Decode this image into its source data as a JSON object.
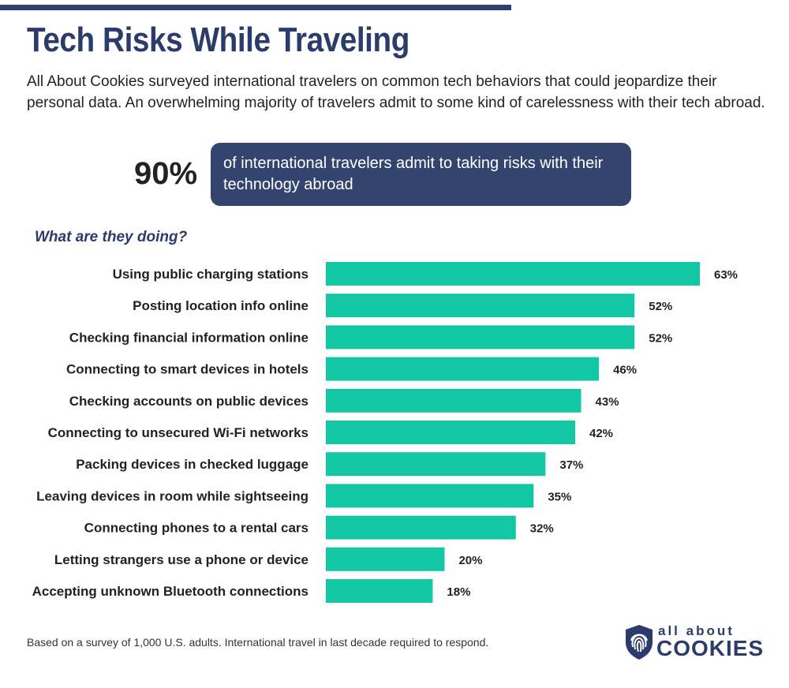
{
  "header": {
    "title": "Tech Risks While Traveling",
    "subtitle": "All About Cookies surveyed international travelers on common tech behaviors that could jeopardize their personal data. An overwhelming majority of travelers admit to some kind of carelessness with their tech abroad."
  },
  "stat": {
    "value": "90%",
    "text": "of international travelers admit to taking risks with their technology abroad"
  },
  "question": "What are they doing?",
  "chart_data": {
    "type": "bar",
    "orientation": "horizontal",
    "categories": [
      "Using public charging stations",
      "Posting location info online",
      "Checking financial information online",
      "Connecting to smart devices in hotels",
      "Checking accounts on public devices",
      "Connecting to unsecured Wi-Fi networks",
      "Packing devices in checked luggage",
      "Leaving devices in room while sightseeing",
      "Connecting phones to a rental cars",
      "Letting strangers use a phone or device",
      "Accepting unknown Bluetooth connections"
    ],
    "values": [
      63,
      52,
      52,
      46,
      43,
      42,
      37,
      35,
      32,
      20,
      18
    ],
    "value_suffix": "%",
    "bar_color": "#14c7a4",
    "xlim": [
      0,
      63
    ],
    "grid": false,
    "legend": "none"
  },
  "footnote": "Based on a survey of 1,000 U.S. adults. International travel in last decade required to respond.",
  "logo": {
    "line1": "all about",
    "line2": "COOKIES",
    "icon": "fingerprint-shield-icon",
    "color": "#2b3b6b"
  },
  "colors": {
    "accent": "#2e3e6e",
    "stat_box": "#33446f"
  }
}
